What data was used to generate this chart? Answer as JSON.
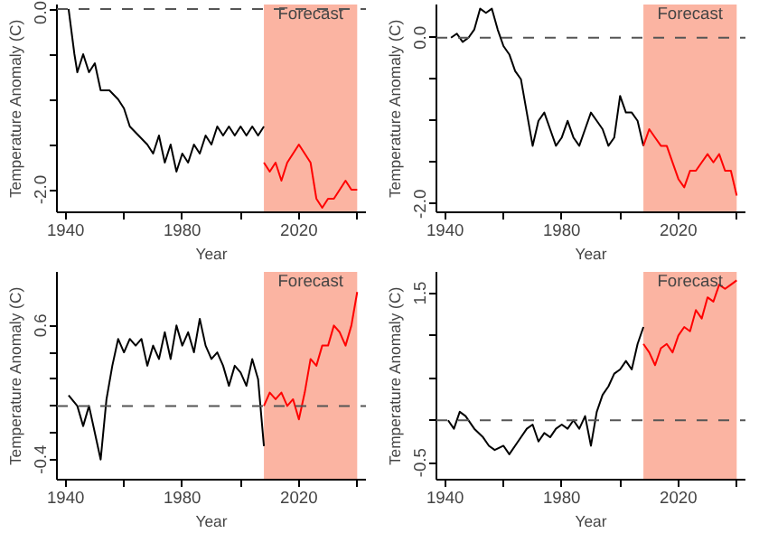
{
  "chart_data": [
    {
      "type": "line",
      "xlabel": "Year",
      "ylabel": "Temperature Anomaly (C)",
      "xlim": [
        1937,
        2043
      ],
      "ylim": [
        -2.25,
        0.05
      ],
      "xticks": [
        1940,
        {
          "value": 1960,
          "label": null
        },
        1980,
        {
          "value": 2000,
          "label": null
        },
        2020,
        {
          "value": 2040,
          "label": null
        }
      ],
      "yticks": [
        {
          "value": 0,
          "label": "0.0"
        },
        {
          "value": -0.5,
          "label": null
        },
        {
          "value": -1,
          "label": null
        },
        {
          "value": -1.5,
          "label": null
        },
        {
          "value": -2,
          "label": "-2.0"
        }
      ],
      "grid": false,
      "line_style": "solid",
      "ref_lines": [
        {
          "axis": "y",
          "value": 0,
          "line_style": "dashed",
          "color": "#555555"
        }
      ],
      "bands": [
        {
          "axis": "x",
          "from": 2008,
          "to": 2040,
          "label": "Forecast",
          "color": "#fbb4a2"
        }
      ],
      "series": [
        {
          "color": "#000000",
          "x": [
            1941,
            1943,
            1944,
            1946,
            1948,
            1950,
            1952,
            1955,
            1958,
            1960,
            1962,
            1965,
            1968,
            1970,
            1972,
            1974,
            1976,
            1978,
            1980,
            1982,
            1984,
            1986,
            1988,
            1990,
            1992,
            1994,
            1996,
            1998,
            2000,
            2002,
            2004,
            2006,
            2008
          ],
          "values": [
            0,
            -0.5,
            -0.7,
            -0.5,
            -0.7,
            -0.6,
            -0.9,
            -0.9,
            -1.0,
            -1.1,
            -1.3,
            -1.4,
            -1.5,
            -1.6,
            -1.4,
            -1.7,
            -1.5,
            -1.8,
            -1.6,
            -1.7,
            -1.5,
            -1.6,
            -1.4,
            -1.5,
            -1.3,
            -1.4,
            -1.3,
            -1.4,
            -1.3,
            -1.4,
            -1.3,
            -1.4,
            -1.3
          ]
        },
        {
          "color": "#ff0000",
          "x": [
            2008,
            2010,
            2012,
            2014,
            2016,
            2018,
            2020,
            2022,
            2024,
            2026,
            2028,
            2030,
            2032,
            2034,
            2036,
            2038,
            2040
          ],
          "values": [
            -1.7,
            -1.8,
            -1.7,
            -1.9,
            -1.7,
            -1.6,
            -1.5,
            -1.6,
            -1.7,
            -2.1,
            -2.2,
            -2.1,
            -2.1,
            -2.0,
            -1.9,
            -2.0,
            -2.0
          ]
        }
      ]
    },
    {
      "type": "line",
      "xlabel": "Year",
      "ylabel": "Temperature Anomaly (C)",
      "xlim": [
        1937,
        2043
      ],
      "ylim": [
        -2.1,
        0.4
      ],
      "xticks": [
        1940,
        {
          "value": 1960,
          "label": null
        },
        1980,
        {
          "value": 2000,
          "label": null
        },
        2020,
        {
          "value": 2040,
          "label": null
        }
      ],
      "yticks": [
        {
          "value": 0,
          "label": "0.0"
        },
        {
          "value": -0.5,
          "label": null
        },
        {
          "value": -1,
          "label": null
        },
        {
          "value": -1.5,
          "label": null
        },
        {
          "value": -2,
          "label": "-2.0"
        }
      ],
      "grid": false,
      "line_style": "solid",
      "ref_lines": [
        {
          "axis": "y",
          "value": 0,
          "line_style": "dashed",
          "color": "#555555"
        }
      ],
      "bands": [
        {
          "axis": "x",
          "from": 2008,
          "to": 2040,
          "label": "Forecast",
          "color": "#fbb4a2"
        }
      ],
      "series": [
        {
          "color": "#000000",
          "x": [
            1942,
            1944,
            1946,
            1948,
            1950,
            1952,
            1954,
            1956,
            1958,
            1960,
            1962,
            1964,
            1966,
            1968,
            1970,
            1972,
            1974,
            1976,
            1978,
            1980,
            1982,
            1984,
            1986,
            1988,
            1990,
            1992,
            1994,
            1996,
            1998,
            2000,
            2002,
            2004,
            2006,
            2008
          ],
          "values": [
            0.0,
            0.05,
            -0.05,
            0.0,
            0.1,
            0.35,
            0.3,
            0.35,
            0.1,
            -0.1,
            -0.2,
            -0.4,
            -0.5,
            -0.9,
            -1.3,
            -1.0,
            -0.9,
            -1.1,
            -1.3,
            -1.2,
            -1.0,
            -1.2,
            -1.3,
            -1.1,
            -0.9,
            -1.0,
            -1.1,
            -1.3,
            -1.2,
            -0.7,
            -0.9,
            -0.9,
            -1.0,
            -1.3
          ]
        },
        {
          "color": "#ff0000",
          "x": [
            2008,
            2010,
            2012,
            2014,
            2016,
            2018,
            2020,
            2022,
            2024,
            2026,
            2028,
            2030,
            2032,
            2034,
            2036,
            2038,
            2040
          ],
          "values": [
            -1.3,
            -1.1,
            -1.2,
            -1.3,
            -1.3,
            -1.5,
            -1.7,
            -1.8,
            -1.6,
            -1.6,
            -1.5,
            -1.4,
            -1.5,
            -1.4,
            -1.6,
            -1.6,
            -1.9
          ]
        }
      ]
    },
    {
      "type": "line",
      "xlabel": "Year",
      "ylabel": "Temperature Anomaly (C)",
      "xlim": [
        1937,
        2043
      ],
      "ylim": [
        -0.55,
        1.0
      ],
      "xticks": [
        1940,
        {
          "value": 1960,
          "label": null
        },
        1980,
        {
          "value": 2000,
          "label": null
        },
        2020,
        {
          "value": 2040,
          "label": null
        }
      ],
      "yticks": [
        {
          "value": -0.4,
          "label": "-0.4"
        },
        {
          "value": -0.2,
          "label": null
        },
        {
          "value": 0,
          "label": null
        },
        {
          "value": 0.2,
          "label": null
        },
        {
          "value": 0.4,
          "label": null
        },
        0.6
      ],
      "grid": false,
      "line_style": "solid",
      "ref_lines": [
        {
          "axis": "y",
          "value": 0,
          "line_style": "dashed",
          "color": "#555555"
        }
      ],
      "bands": [
        {
          "axis": "x",
          "from": 2008,
          "to": 2040,
          "label": "Forecast",
          "color": "#fbb4a2"
        }
      ],
      "series": [
        {
          "color": "#000000",
          "x": [
            1941,
            1944,
            1946,
            1948,
            1950,
            1952,
            1954,
            1956,
            1958,
            1960,
            1962,
            1964,
            1966,
            1968,
            1970,
            1972,
            1974,
            1976,
            1978,
            1980,
            1982,
            1984,
            1986,
            1988,
            1990,
            1992,
            1994,
            1996,
            1998,
            2000,
            2002,
            2004,
            2006,
            2008
          ],
          "values": [
            0.08,
            0.0,
            -0.15,
            0.0,
            -0.2,
            -0.4,
            0.05,
            0.3,
            0.5,
            0.4,
            0.5,
            0.45,
            0.5,
            0.3,
            0.45,
            0.35,
            0.55,
            0.35,
            0.6,
            0.45,
            0.55,
            0.4,
            0.65,
            0.45,
            0.35,
            0.4,
            0.3,
            0.15,
            0.3,
            0.25,
            0.15,
            0.35,
            0.2,
            -0.3
          ]
        },
        {
          "color": "#ff0000",
          "x": [
            2008,
            2010,
            2012,
            2014,
            2016,
            2018,
            2020,
            2022,
            2024,
            2026,
            2028,
            2030,
            2032,
            2034,
            2036,
            2038,
            2040
          ],
          "values": [
            0.0,
            0.1,
            0.05,
            0.1,
            0.0,
            0.05,
            -0.1,
            0.1,
            0.35,
            0.3,
            0.45,
            0.45,
            0.6,
            0.55,
            0.45,
            0.6,
            0.85
          ]
        }
      ]
    },
    {
      "type": "line",
      "xlabel": "Year",
      "ylabel": "Temperature Anomaly (C)",
      "xlim": [
        1937,
        2043
      ],
      "ylim": [
        -0.7,
        1.75
      ],
      "xticks": [
        1940,
        {
          "value": 1960,
          "label": null
        },
        1980,
        {
          "value": 2000,
          "label": null
        },
        2020,
        {
          "value": 2040,
          "label": null
        }
      ],
      "yticks": [
        -0.5,
        {
          "value": 0,
          "label": null
        },
        {
          "value": 0.5,
          "label": null
        },
        {
          "value": 1,
          "label": null
        },
        1.5
      ],
      "grid": false,
      "line_style": "solid",
      "ref_lines": [
        {
          "axis": "y",
          "value": 0,
          "line_style": "dashed",
          "color": "#555555"
        }
      ],
      "bands": [
        {
          "axis": "x",
          "from": 2008,
          "to": 2040,
          "label": "Forecast",
          "color": "#fbb4a2"
        }
      ],
      "series": [
        {
          "color": "#000000",
          "x": [
            1941,
            1943,
            1945,
            1947,
            1950,
            1953,
            1955,
            1957,
            1960,
            1962,
            1965,
            1968,
            1970,
            1972,
            1974,
            1976,
            1978,
            1980,
            1982,
            1984,
            1986,
            1988,
            1990,
            1992,
            1994,
            1996,
            1998,
            2000,
            2002,
            2004,
            2006,
            2008
          ],
          "values": [
            0.0,
            -0.1,
            0.1,
            0.05,
            -0.1,
            -0.2,
            -0.3,
            -0.35,
            -0.3,
            -0.4,
            -0.25,
            -0.1,
            -0.05,
            -0.25,
            -0.15,
            -0.2,
            -0.1,
            -0.05,
            -0.1,
            0.0,
            -0.1,
            0.05,
            -0.3,
            0.1,
            0.3,
            0.4,
            0.55,
            0.6,
            0.7,
            0.6,
            0.9,
            1.1
          ]
        },
        {
          "color": "#ff0000",
          "x": [
            2008,
            2010,
            2012,
            2014,
            2016,
            2018,
            2020,
            2022,
            2024,
            2026,
            2028,
            2030,
            2032,
            2034,
            2036,
            2038,
            2040
          ],
          "values": [
            0.9,
            0.8,
            0.65,
            0.85,
            0.9,
            0.8,
            1.0,
            1.1,
            1.05,
            1.3,
            1.2,
            1.45,
            1.4,
            1.6,
            1.55,
            1.6,
            1.65
          ]
        }
      ]
    }
  ]
}
